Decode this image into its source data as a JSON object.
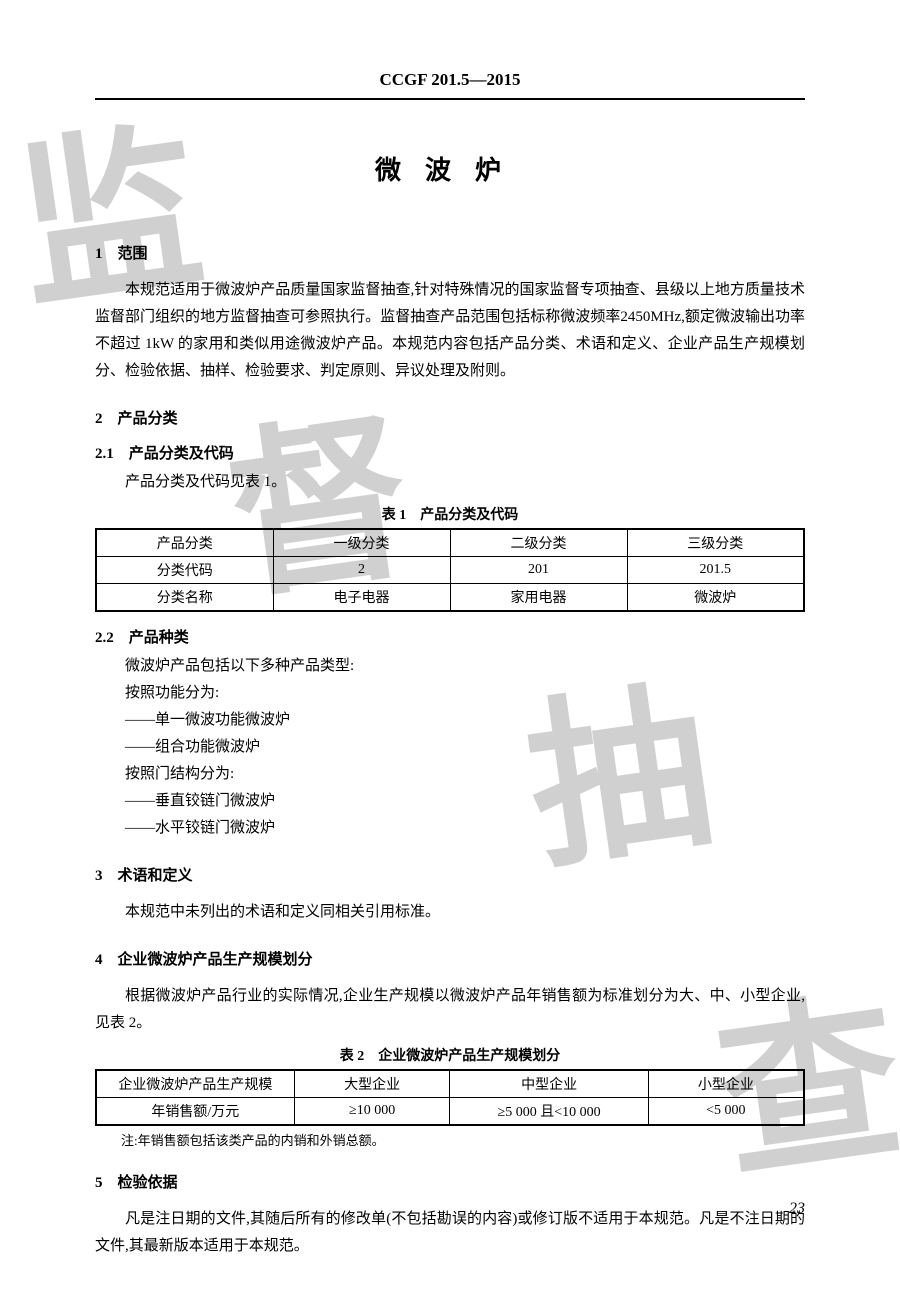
{
  "header_code": "CCGF 201.5—2015",
  "title": "微波炉",
  "watermark": {
    "c1": "监",
    "c2": "督",
    "c3": "抽",
    "c4": "查"
  },
  "sec1": {
    "h": "1　范围",
    "p": "本规范适用于微波炉产品质量国家监督抽查,针对特殊情况的国家监督专项抽查、县级以上地方质量技术监督部门组织的地方监督抽查可参照执行。监督抽查产品范围包括标称微波频率2450MHz,额定微波输出功率不超过 1kW 的家用和类似用途微波炉产品。本规范内容包括产品分类、术语和定义、企业产品生产规模划分、检验依据、抽样、检验要求、判定原则、异议处理及附则。"
  },
  "sec2": {
    "h": "2　产品分类",
    "s21h": "2.1　产品分类及代码",
    "s21p": "产品分类及代码见表 1。",
    "table1": {
      "caption": "表 1　产品分类及代码",
      "headers": [
        "产品分类",
        "一级分类",
        "二级分类",
        "三级分类"
      ],
      "row_code": [
        "分类代码",
        "2",
        "201",
        "201.5"
      ],
      "row_name": [
        "分类名称",
        "电子电器",
        "家用电器",
        "微波炉"
      ],
      "col_widths": [
        "25%",
        "25%",
        "25%",
        "25%"
      ]
    },
    "s22h": "2.2　产品种类",
    "s22_lines": {
      "intro": "微波炉产品包括以下多种产品类型:",
      "by_func": "按照功能分为:",
      "f1": "——单一微波功能微波炉",
      "f2": "——组合功能微波炉",
      "by_door": "按照门结构分为:",
      "d1": "——垂直铰链门微波炉",
      "d2": "——水平铰链门微波炉"
    }
  },
  "sec3": {
    "h": "3　术语和定义",
    "p": "本规范中未列出的术语和定义同相关引用标准。"
  },
  "sec4": {
    "h": "4　企业微波炉产品生产规模划分",
    "p": "根据微波炉产品行业的实际情况,企业生产规模以微波炉产品年销售额为标准划分为大、中、小型企业,见表 2。",
    "table2": {
      "caption": "表 2　企业微波炉产品生产规模划分",
      "headers": [
        "企业微波炉产品生产规模",
        "大型企业",
        "中型企业",
        "小型企业"
      ],
      "row": [
        "年销售额/万元",
        "≥10 000",
        "≥5 000 且<10 000",
        "<5 000"
      ],
      "col_widths": [
        "28%",
        "22%",
        "28%",
        "22%"
      ],
      "note": "注:年销售额包括该类产品的内销和外销总额。"
    }
  },
  "sec5": {
    "h": "5　检验依据",
    "p": "凡是注日期的文件,其随后所有的修改单(不包括勘误的内容)或修订版不适用于本规范。凡是不注日期的文件,其最新版本适用于本规范。"
  },
  "page_number": "23"
}
